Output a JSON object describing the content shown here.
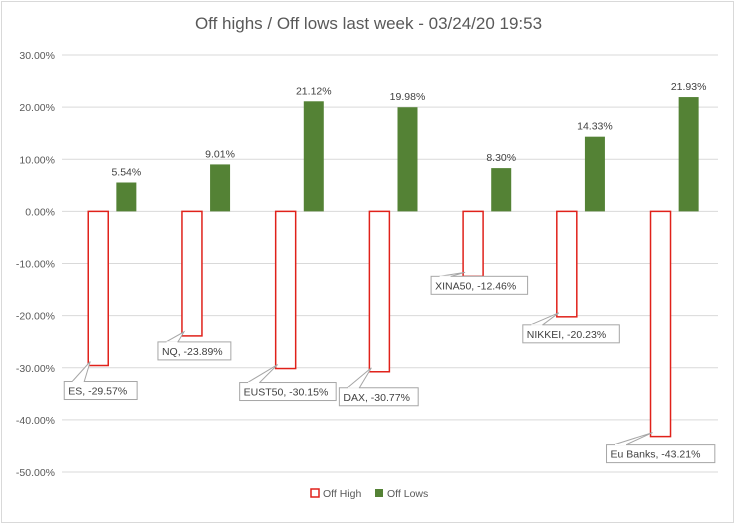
{
  "title": "Off highs / Off lows last week  -  03/24/20 19:53",
  "colors": {
    "off_high_stroke": "#e0211a",
    "off_lows_fill": "#548235",
    "gridline": "#d9d9d9",
    "callout_border": "#a6a6a6"
  },
  "chart_data": {
    "type": "bar",
    "categories": [
      "ES",
      "NQ",
      "EUST50",
      "DAX",
      "XINA50",
      "NIKKEI",
      "Eu Banks"
    ],
    "series": [
      {
        "name": "Off High",
        "values": [
          -29.57,
          -23.89,
          -30.15,
          -30.77,
          -12.46,
          -20.23,
          -43.21
        ],
        "labels": [
          "ES, -29.57%",
          "NQ, -23.89%",
          "EUST50, -30.15%",
          "DAX, -30.77%",
          "XINA50, -12.46%",
          "NIKKEI, -20.23%",
          "Eu Banks, -43.21%"
        ],
        "style": "outline"
      },
      {
        "name": "Off Lows",
        "values": [
          5.54,
          9.01,
          21.12,
          19.98,
          8.3,
          14.33,
          21.93
        ],
        "labels": [
          "5.54%",
          "9.01%",
          "21.12%",
          "19.98%",
          "8.30%",
          "14.33%",
          "21.93%"
        ],
        "style": "filled"
      }
    ],
    "yticks": [
      "30.00%",
      "20.00%",
      "10.00%",
      "0.00%",
      "-10.00%",
      "-20.00%",
      "-30.00%",
      "-40.00%",
      "-50.00%"
    ],
    "ylim": [
      -50,
      30
    ],
    "grid": true,
    "legend_position": "bottom"
  }
}
